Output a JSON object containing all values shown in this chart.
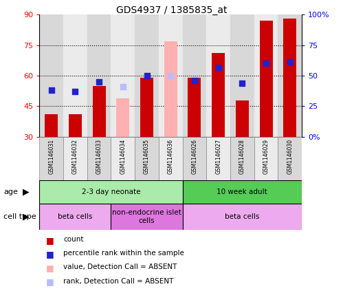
{
  "title": "GDS4937 / 1385835_at",
  "samples": [
    "GSM1146031",
    "GSM1146032",
    "GSM1146033",
    "GSM1146034",
    "GSM1146035",
    "GSM1146036",
    "GSM1146026",
    "GSM1146027",
    "GSM1146028",
    "GSM1146029",
    "GSM1146030"
  ],
  "count_values": [
    41,
    41,
    55,
    null,
    59,
    null,
    59,
    71,
    48,
    87,
    88
  ],
  "count_absent": [
    null,
    null,
    null,
    49,
    null,
    77,
    null,
    null,
    null,
    null,
    null
  ],
  "rank_values": [
    38,
    37,
    45,
    null,
    50,
    null,
    46,
    57,
    44,
    60,
    61
  ],
  "rank_absent": [
    null,
    null,
    null,
    41,
    null,
    50,
    null,
    null,
    null,
    null,
    null
  ],
  "ylim_left": [
    30,
    90
  ],
  "ylim_right": [
    0,
    100
  ],
  "yticks_left": [
    30,
    45,
    60,
    75,
    90
  ],
  "yticks_right": [
    0,
    25,
    50,
    75,
    100
  ],
  "ytick_labels_right": [
    "0%",
    "25",
    "50",
    "75",
    "100%"
  ],
  "ytick_labels_left": [
    "30",
    "45",
    "60",
    "75",
    "90"
  ],
  "hlines": [
    45,
    60,
    75
  ],
  "color_count": "#cc0000",
  "color_rank": "#2222cc",
  "color_count_absent": "#ffb0b0",
  "color_rank_absent": "#bbbbff",
  "age_groups": [
    {
      "label": "2-3 day neonate",
      "start": 0,
      "end": 6,
      "color": "#aaeaaa"
    },
    {
      "label": "10 week adult",
      "start": 6,
      "end": 11,
      "color": "#55cc55"
    }
  ],
  "cell_groups": [
    {
      "label": "beta cells",
      "start": 0,
      "end": 3,
      "color": "#eeaaee"
    },
    {
      "label": "non-endocrine islet\ncells",
      "start": 3,
      "end": 6,
      "color": "#dd77dd"
    },
    {
      "label": "beta cells",
      "start": 6,
      "end": 11,
      "color": "#eeaaee"
    }
  ],
  "legend_items": [
    {
      "color": "#cc0000",
      "label": "count"
    },
    {
      "color": "#2222cc",
      "label": "percentile rank within the sample"
    },
    {
      "color": "#ffb0b0",
      "label": "value, Detection Call = ABSENT"
    },
    {
      "color": "#bbbbff",
      "label": "rank, Detection Call = ABSENT"
    }
  ],
  "bar_width": 0.55,
  "dot_size": 28,
  "col_bg_even": "#d8d8d8",
  "col_bg_odd": "#ebebeb"
}
